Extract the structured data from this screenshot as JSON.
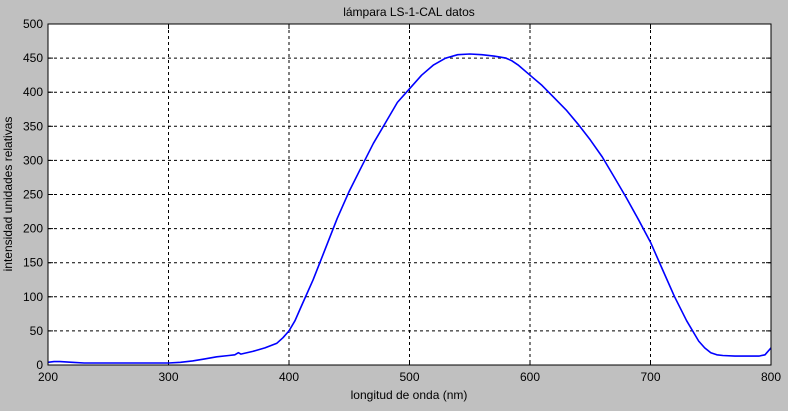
{
  "figure": {
    "background": "#c0c0c0",
    "axes_background": "#ffffff",
    "line_color": "#0000ff"
  },
  "chart_data": {
    "type": "line",
    "title": "lámpara LS-1-CAL datos",
    "xlabel": "longitud de onda (nm)",
    "ylabel": "intensidad unidades relativas",
    "xlim": [
      200,
      800
    ],
    "ylim": [
      0,
      500
    ],
    "grid": true,
    "xticks": [
      200,
      300,
      400,
      500,
      600,
      700,
      800
    ],
    "yticks": [
      0,
      50,
      100,
      150,
      200,
      250,
      300,
      350,
      400,
      450,
      500
    ],
    "series": [
      {
        "color": "#0000ff",
        "x": [
          200,
          205,
          210,
          220,
          230,
          250,
          270,
          290,
          300,
          310,
          320,
          330,
          340,
          350,
          355,
          358,
          360,
          370,
          380,
          390,
          395,
          400,
          405,
          410,
          420,
          430,
          440,
          450,
          460,
          470,
          480,
          490,
          500,
          510,
          520,
          530,
          540,
          550,
          560,
          570,
          580,
          585,
          590,
          600,
          610,
          620,
          630,
          640,
          650,
          660,
          670,
          680,
          690,
          700,
          710,
          720,
          730,
          740,
          745,
          750,
          755,
          760,
          770,
          780,
          790,
          795,
          800
        ],
        "y": [
          4,
          5,
          5,
          4,
          3,
          3,
          3,
          3,
          3,
          4,
          6,
          9,
          12,
          14,
          15,
          18,
          16,
          20,
          25,
          32,
          40,
          50,
          65,
          85,
          125,
          170,
          215,
          255,
          290,
          325,
          355,
          385,
          405,
          425,
          440,
          450,
          455,
          456,
          455,
          453,
          450,
          446,
          440,
          425,
          410,
          392,
          374,
          353,
          330,
          305,
          275,
          245,
          213,
          180,
          140,
          100,
          65,
          35,
          25,
          18,
          15,
          14,
          13,
          13,
          13,
          15,
          25
        ]
      }
    ]
  }
}
